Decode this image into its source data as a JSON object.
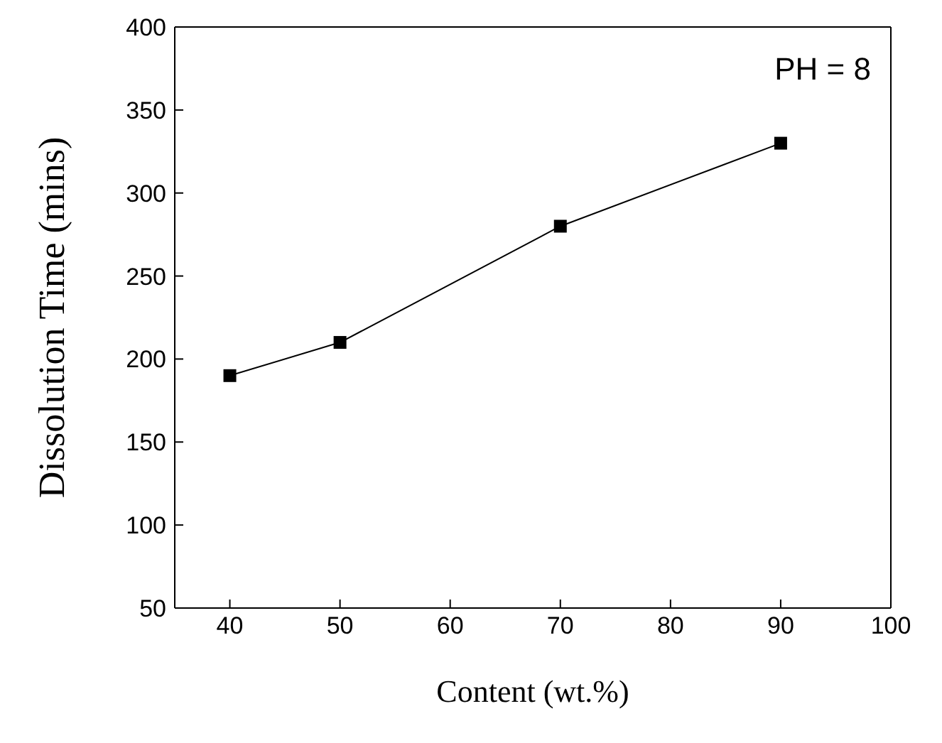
{
  "chart_data": {
    "type": "line",
    "xlabel": "Content (wt.%)",
    "ylabel": "Dissolution Time (mins)",
    "annotations": [
      "PH = 8"
    ],
    "x": [
      40,
      50,
      70,
      90
    ],
    "series": [
      {
        "color": "#000000",
        "values": [
          190,
          210,
          280,
          330
        ]
      }
    ],
    "xlim": [
      35,
      100
    ],
    "xticks": [
      40,
      50,
      60,
      70,
      80,
      90,
      100
    ],
    "ylim": [
      50,
      400
    ],
    "yticks": [
      50,
      100,
      150,
      200,
      250,
      300,
      350,
      400
    ],
    "grid": false,
    "legend": false,
    "marker": "square",
    "line_style": "solid"
  }
}
